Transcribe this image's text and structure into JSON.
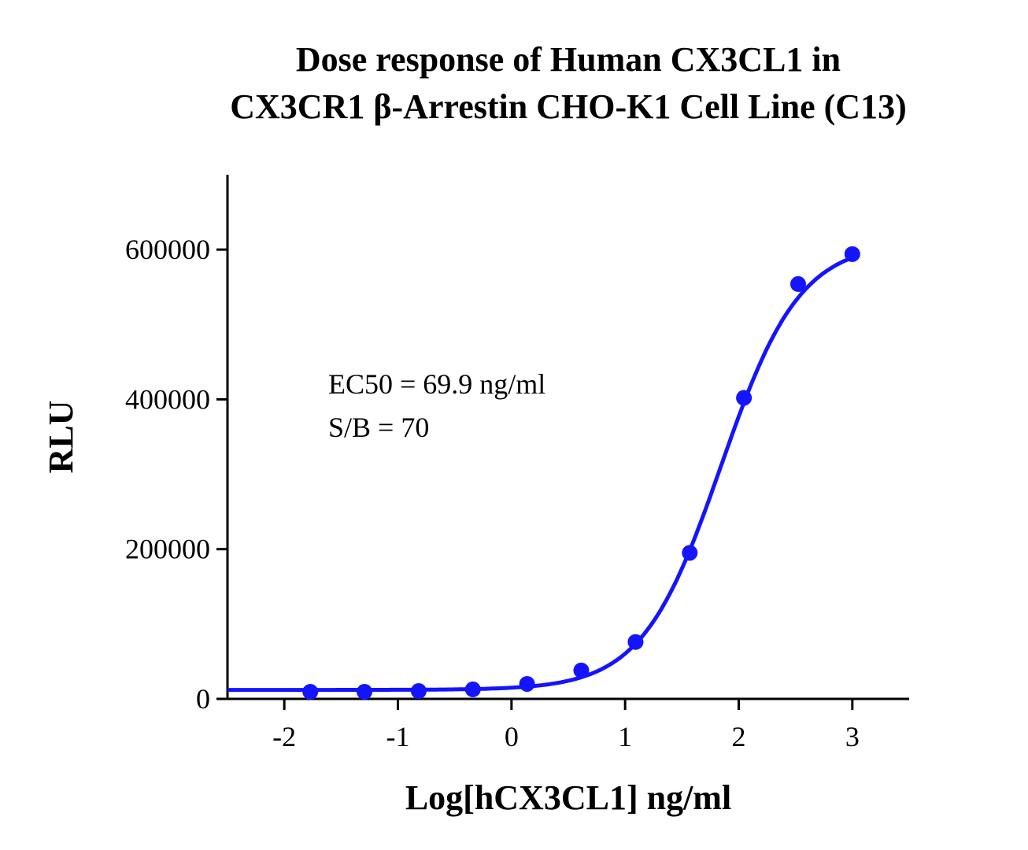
{
  "chart_data": {
    "type": "scatter",
    "title_lines": [
      "Dose response of Human CX3CL1  in",
      "CX3CR1 β-Arrestin CHO-K1 Cell Line (C13)"
    ],
    "xlabel": "Log[hCX3CL1] ng/ml",
    "ylabel": "RLU",
    "xlim": [
      -2.5,
      3.5
    ],
    "ylim": [
      0,
      700000
    ],
    "xticks": [
      -2,
      -1,
      0,
      1,
      2,
      3
    ],
    "xtick_labels": [
      "-2",
      "-1",
      "0",
      "1",
      "2",
      "3"
    ],
    "yticks": [
      0,
      200000,
      400000,
      600000
    ],
    "ytick_labels": [
      "0",
      "200000",
      "400000",
      "600000"
    ],
    "grid": false,
    "color": "#1414ff",
    "annotations": [
      "EC50 = 69.9 ng/ml",
      "S/B = 70"
    ],
    "points": {
      "x": [
        -1.771,
        -1.294,
        -0.817,
        -0.34,
        0.137,
        0.614,
        1.092,
        1.569,
        2.046,
        2.523,
        3.0
      ],
      "y": [
        9500,
        9500,
        10500,
        12700,
        20000,
        38000,
        76000,
        195000,
        402000,
        554000,
        594000
      ]
    },
    "fit_curve": {
      "model": "4PL",
      "bottom": 12000,
      "top": 610000,
      "log_ec50": 1.844,
      "hill": 1.25
    }
  }
}
